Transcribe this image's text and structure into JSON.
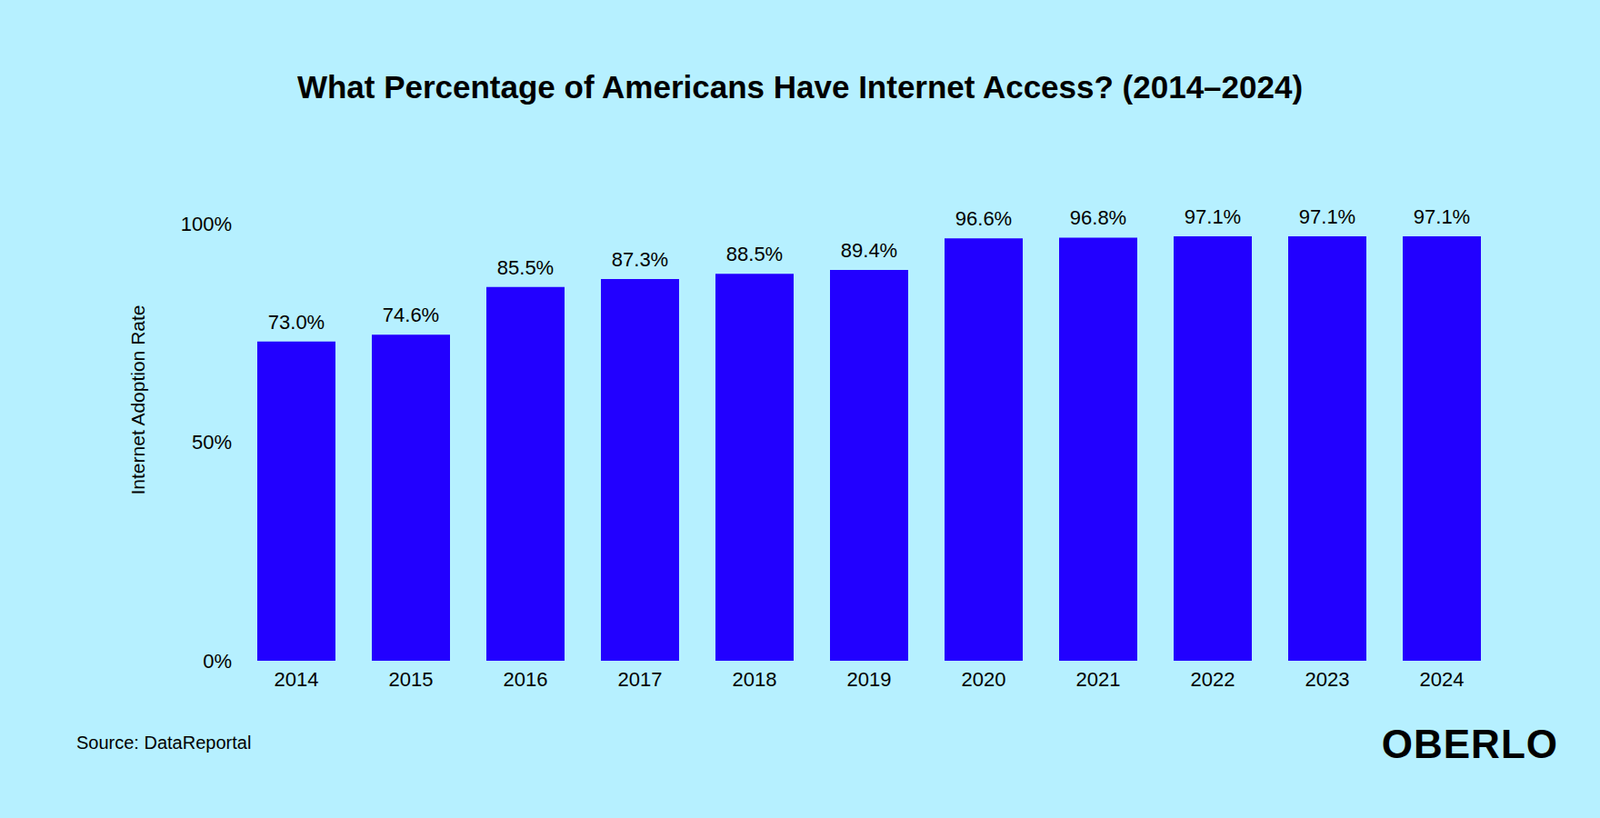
{
  "chart_data": {
    "type": "bar",
    "title": "What Percentage of Americans Have Internet Access? (2014–2024)",
    "y_label": "Internet Adoption Rate",
    "categories": [
      "2014",
      "2015",
      "2016",
      "2017",
      "2018",
      "2019",
      "2020",
      "2021",
      "2022",
      "2023",
      "2024"
    ],
    "values": [
      73.0,
      74.6,
      85.5,
      87.3,
      88.5,
      89.4,
      96.6,
      96.8,
      97.1,
      97.1,
      97.1
    ],
    "value_labels": [
      "73.0%",
      "74.6%",
      "85.5%",
      "87.3%",
      "88.5%",
      "89.4%",
      "96.6%",
      "96.8%",
      "97.1%",
      "97.1%",
      "97.1%"
    ],
    "color": "#2200ff",
    "ylim": [
      0,
      100
    ],
    "yticks": [
      {
        "value": 0,
        "label": "0%"
      },
      {
        "value": 50,
        "label": "50%"
      },
      {
        "value": 100,
        "label": "100%"
      }
    ],
    "grid": false,
    "data_labels": true,
    "annotations": [
      "Source: DataReportal",
      "OBERLO"
    ]
  }
}
